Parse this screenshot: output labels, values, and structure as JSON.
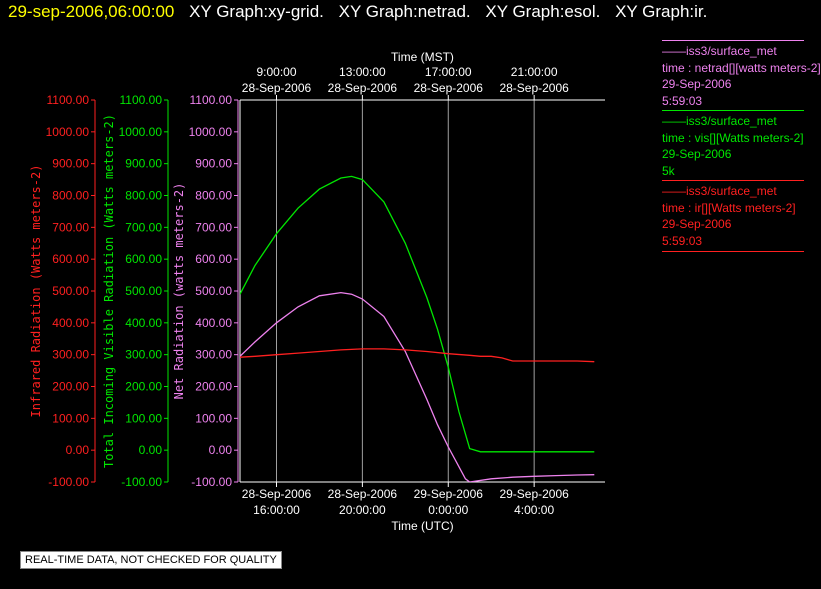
{
  "colors": {
    "title_date": "#ffff00",
    "text": "#ffffff",
    "netrad": "#ee82ee",
    "vis": "#00e600",
    "ir": "#ff2020",
    "grid": "#b0b0b0",
    "axis": "#ffffff"
  },
  "header": {
    "datetime": "29-sep-2006,06:00:00",
    "graphs": [
      "XY Graph:xy-grid.",
      "XY Graph:netrad.",
      "XY Graph:esol.",
      "XY Graph:ir."
    ]
  },
  "legend": [
    {
      "line1": "——iss3/surface_met",
      "line2": "time : netrad[][watts meters-2]",
      "line3": "29-Sep-2006",
      "line4": "5:59:03",
      "color": "#ee82ee"
    },
    {
      "line1": "——iss3/surface_met",
      "line2": "time : vis[][Watts meters-2]",
      "line3": "29-Sep-2006",
      "line4": "5k",
      "color": "#00e600"
    },
    {
      "line1": "——iss3/surface_met",
      "line2": "time : ir[][Watts meters-2]",
      "line3": "29-Sep-2006",
      "line4": "5:59:03",
      "color": "#ff2020"
    }
  ],
  "footer_note": "REAL-TIME DATA, NOT CHECKED FOR QUALITY",
  "chart_data": {
    "type": "line",
    "xlim_utc_hours": [
      14.3,
      31.3
    ],
    "ylim": [
      -100,
      1100
    ],
    "y_ticks": [
      -100,
      0,
      100,
      200,
      300,
      400,
      500,
      600,
      700,
      800,
      900,
      1000,
      1100
    ],
    "y_tick_labels": [
      "-100.00",
      "0.00",
      "100.00",
      "200.00",
      "300.00",
      "400.00",
      "500.00",
      "600.00",
      "700.00",
      "800.00",
      "900.00",
      "1000.00",
      "1100.00"
    ],
    "top_axis": {
      "label": "Time (MST)",
      "ticks": [
        {
          "utc_hours": 16,
          "time": "9:00:00",
          "date": "28-Sep-2006"
        },
        {
          "utc_hours": 20,
          "time": "13:00:00",
          "date": "28-Sep-2006"
        },
        {
          "utc_hours": 24,
          "time": "17:00:00",
          "date": "28-Sep-2006"
        },
        {
          "utc_hours": 28,
          "time": "21:00:00",
          "date": "28-Sep-2006"
        }
      ]
    },
    "bottom_axis": {
      "label": "Time (UTC)",
      "ticks": [
        {
          "utc_hours": 16,
          "date": "28-Sep-2006",
          "time": "16:00:00"
        },
        {
          "utc_hours": 20,
          "date": "28-Sep-2006",
          "time": "20:00:00"
        },
        {
          "utc_hours": 24,
          "date": "29-Sep-2006",
          "time": "0:00:00"
        },
        {
          "utc_hours": 28,
          "date": "29-Sep-2006",
          "time": "4:00:00"
        }
      ]
    },
    "axes": [
      {
        "label": "Infrared Radiation (Watts meters-2)",
        "color": "#ff2020"
      },
      {
        "label": "Total Incoming Visible Radiation (Watts meters-2)",
        "color": "#00e600"
      },
      {
        "label": "Net Radiation (watts meters-2)",
        "color": "#ee82ee"
      }
    ],
    "grid": true,
    "series": [
      {
        "name": "vis",
        "color": "#00e600",
        "x": [
          14.3,
          15,
          16,
          17,
          18,
          19,
          19.5,
          20,
          21,
          22,
          23,
          23.5,
          24,
          24.5,
          25,
          25.5,
          26,
          27,
          28,
          29,
          30,
          30.8
        ],
        "y": [
          490,
          580,
          680,
          760,
          820,
          855,
          860,
          850,
          780,
          650,
          480,
          380,
          260,
          120,
          5,
          -5,
          -5,
          -5,
          -5,
          -5,
          -5,
          -5
        ]
      },
      {
        "name": "netrad",
        "color": "#ee82ee",
        "x": [
          14.3,
          15,
          16,
          17,
          18,
          19,
          19.5,
          20,
          21,
          22,
          23,
          23.5,
          24,
          24.4,
          24.8,
          25,
          26,
          27,
          28,
          29,
          30,
          30.8
        ],
        "y": [
          295,
          340,
          400,
          450,
          485,
          495,
          490,
          475,
          420,
          310,
          160,
          80,
          10,
          -40,
          -90,
          -100,
          -90,
          -85,
          -82,
          -80,
          -78,
          -77
        ]
      },
      {
        "name": "ir",
        "color": "#ff2020",
        "x": [
          14.3,
          15,
          16,
          17,
          18,
          19,
          20,
          21,
          22,
          23,
          24,
          25,
          25.5,
          26,
          26.5,
          27,
          28,
          29,
          30,
          30.8
        ],
        "y": [
          292,
          295,
          300,
          305,
          310,
          315,
          318,
          318,
          315,
          310,
          303,
          298,
          295,
          295,
          290,
          280,
          280,
          280,
          280,
          278
        ]
      }
    ]
  }
}
